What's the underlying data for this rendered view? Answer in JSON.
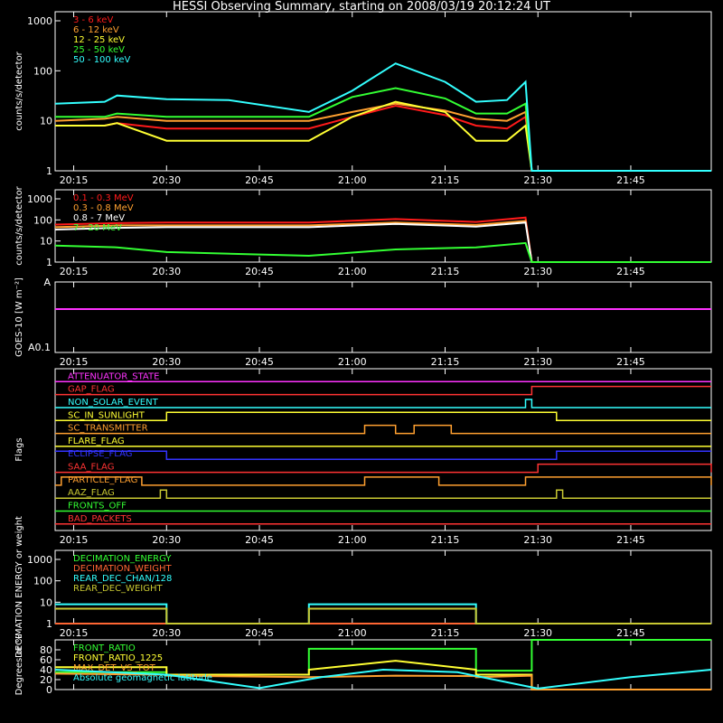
{
  "title": "HESSI Observing Summary, starting on 2008/03/19 20:12:24 UT",
  "x_ticks": [
    "20:15",
    "20:30",
    "20:45",
    "21:00",
    "21:15",
    "21:30",
    "21:45"
  ],
  "colors": {
    "axes": "#ffffff",
    "background": "#000000"
  },
  "chart_data": [
    {
      "type": "line",
      "title": "HESSI Observing Summary, starting on 2008/03/19 20:12:24 UT",
      "xlabel": "",
      "ylabel": "counts/s/detector",
      "y_scale": "log",
      "ylim": [
        1,
        1000
      ],
      "y_ticks": [
        "1",
        "10",
        "100",
        "1000"
      ],
      "legend_position": "top-left",
      "x": [
        "20:12",
        "20:20",
        "20:22",
        "20:30",
        "20:40",
        "20:53",
        "21:00",
        "21:07",
        "21:15",
        "21:20",
        "21:25",
        "21:28",
        "21:29",
        "21:58"
      ],
      "series": [
        {
          "name": "3 - 6 keV",
          "color": "#ff1a1a",
          "values": [
            8,
            8,
            9,
            7,
            7,
            7,
            12,
            20,
            13,
            8,
            7,
            12,
            1,
            1
          ]
        },
        {
          "name": "6 - 12 keV",
          "color": "#ffa030",
          "values": [
            10,
            11,
            12,
            10,
            10,
            10,
            15,
            22,
            16,
            11,
            10,
            15,
            1,
            1
          ]
        },
        {
          "name": "12 - 25 keV",
          "color": "#ffff33",
          "values": [
            8,
            8,
            9,
            4,
            4,
            4,
            12,
            24,
            15,
            4,
            4,
            8,
            1,
            1
          ]
        },
        {
          "name": "25 - 50 keV",
          "color": "#33ff33",
          "values": [
            12,
            12,
            14,
            12,
            12,
            12,
            30,
            45,
            28,
            14,
            14,
            22,
            1,
            1
          ]
        },
        {
          "name": "50 - 100 keV",
          "color": "#33ffff",
          "values": [
            22,
            24,
            32,
            27,
            26,
            15,
            40,
            140,
            60,
            24,
            26,
            60,
            1,
            1
          ]
        }
      ]
    },
    {
      "type": "line",
      "xlabel": "",
      "ylabel": "counts/s/detector",
      "y_scale": "log",
      "ylim": [
        1,
        1000
      ],
      "y_ticks": [
        "1",
        "10",
        "100",
        "1000"
      ],
      "legend_position": "top-left",
      "x": [
        "20:12",
        "20:22",
        "20:30",
        "20:53",
        "21:07",
        "21:20",
        "21:28",
        "21:29",
        "21:58"
      ],
      "series": [
        {
          "name": "0.1 - 0.3 MeV",
          "color": "#ff1a1a",
          "values": [
            60,
            70,
            75,
            75,
            110,
            80,
            130,
            1,
            1
          ]
        },
        {
          "name": "0.3 - 0.8 MeV",
          "color": "#ffa030",
          "values": [
            45,
            55,
            55,
            55,
            75,
            58,
            90,
            1,
            1
          ]
        },
        {
          "name": "0.8 - 7 MeV",
          "color": "#ffffff",
          "values": [
            35,
            42,
            45,
            45,
            65,
            48,
            75,
            1,
            1
          ]
        },
        {
          "name": "7 - 20 MeV",
          "color": "#33ff33",
          "values": [
            6,
            5,
            3,
            2,
            4,
            5,
            8,
            1,
            1
          ]
        }
      ]
    },
    {
      "type": "line",
      "xlabel": "",
      "ylabel": "GOES-10 [W m⁻²]",
      "y_ticks": [
        "A",
        "A0.1"
      ],
      "series": [
        {
          "name": "GOES",
          "color": "#ff33ff",
          "x": [
            "20:12",
            "21:58"
          ],
          "values": [
            1,
            1
          ]
        }
      ]
    },
    {
      "type": "line",
      "xlabel": "",
      "ylabel": "Flags",
      "flags": [
        {
          "name": "ATTENUATOR_STATE",
          "color": "#ff33ff",
          "transitions": [
            [
              "20:12",
              0
            ]
          ]
        },
        {
          "name": "GAP_FLAG",
          "color": "#ff3333",
          "transitions": [
            [
              "20:12",
              0
            ],
            [
              "21:29",
              1
            ]
          ]
        },
        {
          "name": "NON_SOLAR_EVENT",
          "color": "#33ffff",
          "transitions": [
            [
              "20:12",
              0
            ],
            [
              "21:28",
              1
            ],
            [
              "21:29",
              0
            ]
          ]
        },
        {
          "name": "SC_IN_SUNLIGHT",
          "color": "#ffff33",
          "transitions": [
            [
              "20:12",
              0
            ],
            [
              "20:30",
              1
            ],
            [
              "21:33",
              0
            ]
          ]
        },
        {
          "name": "SC_TRANSMITTER",
          "color": "#ffa030",
          "transitions": [
            [
              "20:12",
              0
            ],
            [
              "21:02",
              1
            ],
            [
              "21:07",
              0
            ],
            [
              "21:10",
              1
            ],
            [
              "21:16",
              0
            ]
          ]
        },
        {
          "name": "FLARE_FLAG",
          "color": "#ffff33",
          "transitions": [
            [
              "20:12",
              0
            ]
          ]
        },
        {
          "name": "ECLIPSE_FLAG",
          "color": "#3333ff",
          "transitions": [
            [
              "20:12",
              1
            ],
            [
              "20:30",
              0
            ],
            [
              "21:33",
              1
            ]
          ]
        },
        {
          "name": "SAA_FLAG",
          "color": "#ff3333",
          "transitions": [
            [
              "20:12",
              0
            ],
            [
              "21:30",
              1
            ],
            [
              "21:58",
              0
            ]
          ]
        },
        {
          "name": "PARTICLE_FLAG",
          "color": "#ffa030",
          "transitions": [
            [
              "20:12",
              0
            ],
            [
              "20:13",
              1
            ],
            [
              "20:26",
              0
            ],
            [
              "21:02",
              1
            ],
            [
              "21:14",
              0
            ],
            [
              "21:28",
              1
            ],
            [
              "21:58",
              0
            ]
          ]
        },
        {
          "name": "AAZ_FLAG",
          "color": "#c8c832",
          "transitions": [
            [
              "20:12",
              0
            ],
            [
              "20:29",
              1
            ],
            [
              "20:30",
              0
            ],
            [
              "21:33",
              1
            ],
            [
              "21:34",
              0
            ]
          ]
        },
        {
          "name": "FRONTS_OFF",
          "color": "#33ff33",
          "transitions": [
            [
              "20:12",
              0
            ]
          ]
        },
        {
          "name": "BAD_PACKETS",
          "color": "#ff3333",
          "transitions": [
            [
              "20:12",
              0
            ]
          ]
        }
      ]
    },
    {
      "type": "line",
      "xlabel": "",
      "ylabel": "DECIMATION ENERGY or weight",
      "y_scale": "log",
      "ylim": [
        1,
        1000
      ],
      "y_ticks": [
        "1",
        "10",
        "100",
        "1000"
      ],
      "legend_position": "top-left",
      "x": [
        "20:12",
        "20:30",
        "20:30",
        "20:53",
        "20:53",
        "21:20",
        "21:20",
        "21:58"
      ],
      "series": [
        {
          "name": "DECIMATION_ENERGY",
          "color": "#33ff33",
          "values": [
            1,
            1,
            1,
            1,
            1,
            1,
            1,
            1
          ]
        },
        {
          "name": "DECIMATION_WEIGHT",
          "color": "#ff6633",
          "values": [
            1,
            1,
            1,
            1,
            1,
            1,
            1,
            1
          ]
        },
        {
          "name": "REAR_DEC_CHAN/128",
          "color": "#33ffff",
          "values": [
            8,
            8,
            1,
            1,
            8,
            8,
            1,
            1
          ]
        },
        {
          "name": "REAR_DEC_WEIGHT",
          "color": "#c8c832",
          "values": [
            5,
            5,
            1,
            1,
            5,
            5,
            1,
            1
          ]
        }
      ]
    },
    {
      "type": "line",
      "xlabel": "",
      "ylabel": "Degrees or %",
      "ylim": [
        0,
        100
      ],
      "y_ticks": [
        "0",
        "20",
        "40",
        "60",
        "80"
      ],
      "legend_position": "top-left",
      "x": [
        "20:12",
        "20:30",
        "20:30",
        "20:53",
        "20:53",
        "21:07",
        "21:20",
        "21:20",
        "21:29",
        "21:29",
        "21:58"
      ],
      "series": [
        {
          "name": "FRONT_RATIO",
          "color": "#33ff33",
          "values": [
            35,
            35,
            30,
            30,
            82,
            82,
            82,
            38,
            38,
            100,
            100
          ]
        },
        {
          "name": "FRONT_RATIO_1225",
          "color": "#ffff33",
          "values": [
            45,
            45,
            30,
            30,
            40,
            58,
            40,
            30,
            30,
            0,
            0
          ]
        },
        {
          "name": "MAX_DET_VS_TOT",
          "color": "#ffa030",
          "values": [
            32,
            30,
            28,
            25,
            25,
            28,
            27,
            25,
            28,
            0,
            0
          ]
        },
        {
          "name": "Absolute geomagnetic latitude",
          "color": "#33ffff",
          "x": [
            "20:12",
            "20:30",
            "20:45",
            "20:55",
            "21:05",
            "21:17",
            "21:30",
            "21:45",
            "21:58"
          ],
          "values": [
            40,
            30,
            3,
            25,
            40,
            35,
            2,
            25,
            40
          ]
        }
      ]
    }
  ]
}
